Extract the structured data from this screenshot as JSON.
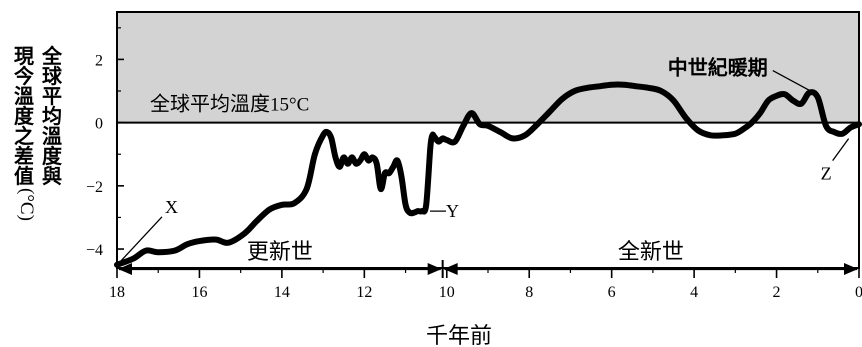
{
  "chart_data": {
    "type": "line",
    "title": "",
    "xlabel": "千年前",
    "ylabel": "現今溫度之差值(°C)",
    "ylabel_line1": "全球平均溫度與",
    "ylabel_line2": "現今溫度之差值",
    "ylabel_unit": "(°C)",
    "xlim": [
      18,
      0
    ],
    "ylim": [
      -4.6,
      3.5
    ],
    "x_ticks": [
      18,
      16,
      14,
      12,
      10,
      8,
      6,
      4,
      2,
      0
    ],
    "x_tick_labels": [
      "18",
      "16",
      "14",
      "12",
      "10",
      "8",
      "6",
      "4",
      "2",
      "0"
    ],
    "y_ticks": [
      2,
      0,
      -2,
      -4
    ],
    "y_tick_labels": [
      "2",
      "0",
      "−2",
      "−4"
    ],
    "shaded_region": {
      "y_from": 0,
      "y_to": 3.5,
      "color": "#d3d3d3"
    },
    "reference_line": {
      "y": 0,
      "label_cjk": "全球平均溫度",
      "label_value": "15°C"
    },
    "series": [
      {
        "x": [
          18.0,
          17.6,
          17.3,
          17.0,
          16.6,
          16.3,
          16.0,
          15.6,
          15.3,
          14.9,
          14.6,
          14.3,
          14.0,
          13.7,
          13.4,
          13.2,
          13.0,
          12.9,
          12.8,
          12.7,
          12.6,
          12.5,
          12.4,
          12.3,
          12.2,
          12.1,
          12.0,
          11.9,
          11.8,
          11.7,
          11.6,
          11.5,
          11.4,
          11.3,
          11.2,
          11.1,
          11.0,
          10.9,
          10.8,
          10.7,
          10.6,
          10.5,
          10.4,
          10.35,
          10.3,
          10.2,
          10.1,
          10.0,
          9.8,
          9.6,
          9.4,
          9.2,
          9.0,
          8.7,
          8.4,
          8.1,
          7.8,
          7.5,
          7.2,
          6.9,
          6.6,
          6.3,
          6.0,
          5.7,
          5.4,
          5.1,
          4.8,
          4.5,
          4.2,
          3.9,
          3.6,
          3.3,
          3.0,
          2.8,
          2.6,
          2.4,
          2.2,
          2.0,
          1.8,
          1.6,
          1.4,
          1.2,
          1.0,
          0.8,
          0.6,
          0.4,
          0.2,
          0.0
        ],
        "y": [
          -4.5,
          -4.3,
          -4.05,
          -4.1,
          -4.05,
          -3.85,
          -3.75,
          -3.7,
          -3.8,
          -3.5,
          -3.1,
          -2.75,
          -2.6,
          -2.55,
          -2.1,
          -1.0,
          -0.4,
          -0.3,
          -0.5,
          -1.1,
          -1.4,
          -1.1,
          -1.3,
          -1.1,
          -1.3,
          -1.2,
          -1.0,
          -1.2,
          -1.1,
          -1.3,
          -2.1,
          -1.6,
          -1.6,
          -1.4,
          -1.2,
          -1.7,
          -2.6,
          -2.85,
          -2.85,
          -2.8,
          -2.8,
          -2.6,
          -0.8,
          -0.4,
          -0.45,
          -0.6,
          -0.5,
          -0.55,
          -0.6,
          -0.1,
          0.3,
          -0.05,
          -0.1,
          -0.3,
          -0.5,
          -0.4,
          -0.05,
          0.35,
          0.75,
          1.0,
          1.1,
          1.15,
          1.2,
          1.2,
          1.15,
          1.1,
          1.0,
          0.7,
          0.15,
          -0.25,
          -0.4,
          -0.4,
          -0.35,
          -0.2,
          0.0,
          0.3,
          0.7,
          0.85,
          0.9,
          0.7,
          0.6,
          0.95,
          0.8,
          -0.1,
          -0.3,
          -0.35,
          -0.15,
          -0.05
        ]
      }
    ],
    "annotations": [
      {
        "text": "X",
        "x": 18.0,
        "y": -4.5
      },
      {
        "text": "Y",
        "x": 10.6,
        "y": -2.8
      },
      {
        "text": "Z",
        "x": 0.3,
        "y": -0.35
      },
      {
        "text": "中世紀暖期",
        "x": 1.0,
        "y": 0.95
      }
    ],
    "periods": [
      {
        "label": "更新世",
        "from": 18,
        "to": 10.1
      },
      {
        "label": "全新世",
        "from": 10.1,
        "to": 0
      }
    ]
  }
}
